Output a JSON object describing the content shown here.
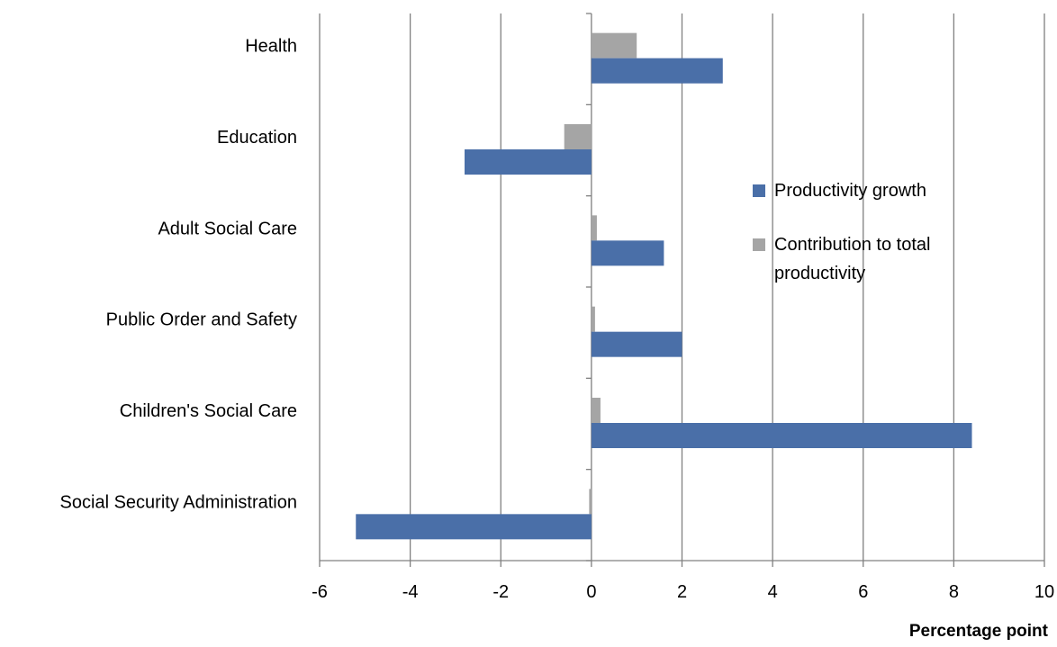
{
  "chart_data": {
    "type": "bar",
    "orientation": "horizontal",
    "categories": [
      "Health",
      "Education",
      "Adult Social Care",
      "Public Order and Safety",
      "Children's Social Care",
      "Social Security Administration"
    ],
    "series": [
      {
        "name": "Contribution to total productivity",
        "values": [
          1.0,
          -0.6,
          0.12,
          0.08,
          0.2,
          -0.05
        ],
        "color": "#a5a5a5"
      },
      {
        "name": "Productivity growth",
        "values": [
          2.9,
          -2.8,
          1.6,
          2.0,
          8.4,
          -5.2
        ],
        "color": "#4a6fa8"
      }
    ],
    "xlim": [
      -6,
      10
    ],
    "xticks": [
      "-6",
      "-4",
      "-2",
      "0",
      "2",
      "4",
      "6",
      "8",
      "10"
    ],
    "xlabel": "Percentage point",
    "grid": true,
    "legend_position": "right"
  },
  "legend": {
    "items": [
      {
        "label": "Productivity growth",
        "color": "#4a6fa8"
      },
      {
        "label": "Contribution to total productivity",
        "color": "#a5a5a5"
      }
    ]
  },
  "colors": {
    "grid": "#808080",
    "axis": "#808080",
    "text": "#000000"
  }
}
